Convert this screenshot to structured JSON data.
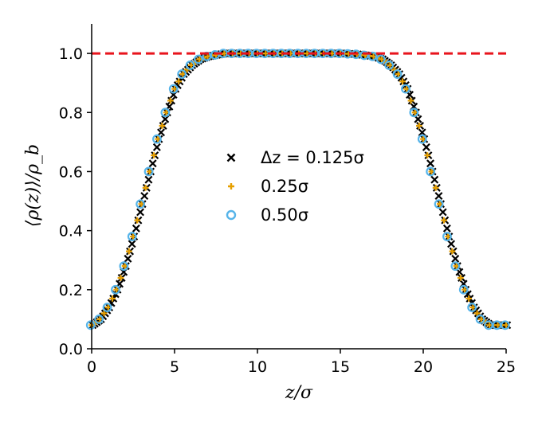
{
  "chart_data": {
    "type": "scatter",
    "xlabel": "z/σ",
    "ylabel": "⟨ρ(z)⟩/ρ_b",
    "xlim": [
      0,
      25
    ],
    "ylim": [
      0,
      1.1
    ],
    "xticks": [
      "0",
      "5",
      "10",
      "15",
      "20",
      "25"
    ],
    "yticks": [
      "0.0",
      "0.2",
      "0.4",
      "0.6",
      "0.8",
      "1.0"
    ],
    "grid": false,
    "legend_position": "center",
    "reference_line": {
      "y": 1.0,
      "style": "dashed",
      "color": "#e8141c"
    },
    "profile": {
      "z": [
        0,
        0.5,
        1,
        1.5,
        2,
        2.5,
        3,
        3.5,
        4,
        4.5,
        5,
        5.5,
        6,
        6.5,
        7,
        7.5,
        8,
        9,
        10,
        11,
        12,
        13,
        14,
        15,
        16,
        17,
        17.5,
        18,
        18.5,
        19,
        19.5,
        20,
        20.5,
        21,
        21.5,
        22,
        22.5,
        23,
        23.5,
        24,
        24.5,
        25
      ],
      "rho": [
        0.08,
        0.1,
        0.14,
        0.2,
        0.28,
        0.38,
        0.49,
        0.6,
        0.71,
        0.8,
        0.88,
        0.93,
        0.96,
        0.98,
        0.99,
        0.995,
        1.0,
        1.0,
        1.0,
        1.0,
        1.0,
        1.0,
        1.0,
        1.0,
        0.997,
        0.99,
        0.98,
        0.96,
        0.93,
        0.88,
        0.8,
        0.71,
        0.6,
        0.49,
        0.38,
        0.28,
        0.2,
        0.14,
        0.1,
        0.08,
        0.08,
        0.08
      ]
    },
    "series": [
      {
        "name": "Δz = 0.125σ",
        "marker": "x",
        "color": "#000000",
        "dz": 0.125,
        "offset": 0.06
      },
      {
        "name": "0.25σ",
        "marker": "plus",
        "color": "#e69f00",
        "dz": 0.25,
        "offset": 0.0
      },
      {
        "name": "0.50σ",
        "marker": "circle",
        "color": "#56b4e9",
        "dz": 0.5,
        "offset": -0.06
      }
    ]
  }
}
